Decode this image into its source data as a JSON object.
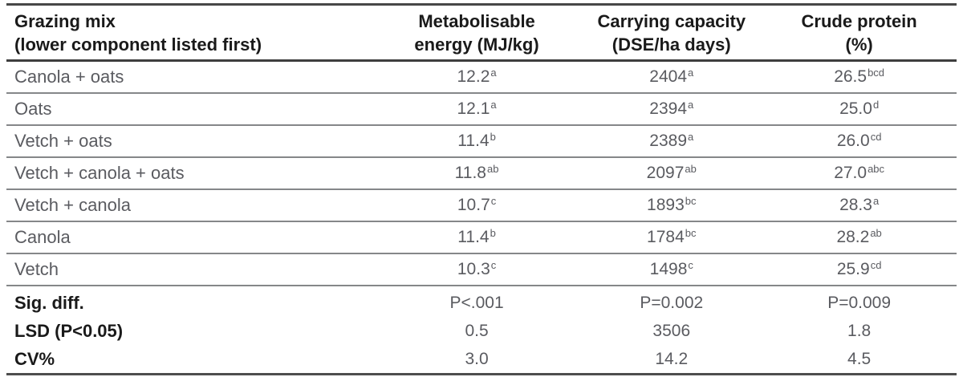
{
  "colors": {
    "heading_text": "#1a1a1a",
    "body_text": "#5a5b60",
    "rule_dark": "#3e3e3e",
    "rule_light": "#858789"
  },
  "table": {
    "columns": [
      {
        "line1": "Grazing mix",
        "line2": "(lower component listed first)"
      },
      {
        "line1": "Metabolisable",
        "line2": "energy (MJ/kg)"
      },
      {
        "line1": "Carrying capacity",
        "line2": "(DSE/ha days)"
      },
      {
        "line1": "Crude protein",
        "line2": "(%)"
      }
    ],
    "rows": [
      {
        "label": "Canola + oats",
        "me": "12.2",
        "me_sup": "a",
        "cc": "2404",
        "cc_sup": "a",
        "cp": "26.5",
        "cp_sup": "bcd"
      },
      {
        "label": "Oats",
        "me": "12.1",
        "me_sup": "a",
        "cc": "2394",
        "cc_sup": "a",
        "cp": "25.0",
        "cp_sup": "d"
      },
      {
        "label": "Vetch + oats",
        "me": "11.4",
        "me_sup": "b",
        "cc": "2389",
        "cc_sup": "a",
        "cp": "26.0",
        "cp_sup": "cd"
      },
      {
        "label": "Vetch + canola + oats",
        "me": "11.8",
        "me_sup": "ab",
        "cc": "2097",
        "cc_sup": "ab",
        "cp": "27.0",
        "cp_sup": "abc"
      },
      {
        "label": "Vetch + canola",
        "me": "10.7",
        "me_sup": "c",
        "cc": "1893",
        "cc_sup": "bc",
        "cp": "28.3",
        "cp_sup": "a"
      },
      {
        "label": "Canola",
        "me": "11.4",
        "me_sup": "b",
        "cc": "1784",
        "cc_sup": "bc",
        "cp": "28.2",
        "cp_sup": "ab"
      },
      {
        "label": "Vetch",
        "me": "10.3",
        "me_sup": "c",
        "cc": "1498",
        "cc_sup": "c",
        "cp": "25.9",
        "cp_sup": "cd"
      }
    ],
    "stats": [
      {
        "label": "Sig. diff.",
        "me": "P<.001",
        "cc": "P=0.002",
        "cp": "P=0.009"
      },
      {
        "label": "LSD (P<0.05)",
        "me": "0.5",
        "cc": "3506",
        "cp": "1.8"
      },
      {
        "label": "CV%",
        "me": "3.0",
        "cc": "14.2",
        "cp": "4.5"
      }
    ]
  }
}
